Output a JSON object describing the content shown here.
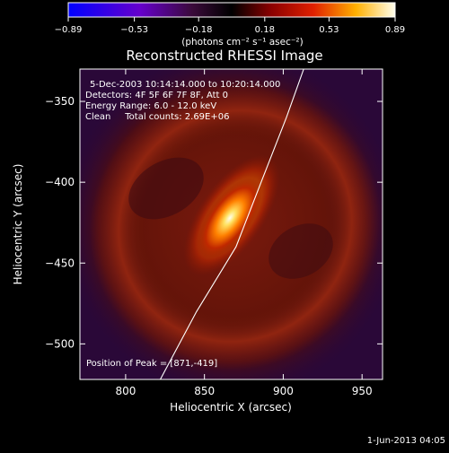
{
  "chart_data": {
    "type": "heatmap",
    "title": "Reconstructed RHESSI Image",
    "xlabel": "Heliocentric X (arcsec)",
    "ylabel": "Heliocentric Y (arcsec)",
    "xlim": [
      771,
      963
    ],
    "ylim": [
      -522,
      -330
    ],
    "x_ticks": [
      800,
      850,
      900,
      950
    ],
    "x_tick_labels": [
      "800",
      "850",
      "900",
      "950"
    ],
    "y_ticks": [
      -350,
      -400,
      -450,
      -500
    ],
    "y_tick_labels": [
      "−350",
      "−400",
      "−450",
      "−500"
    ],
    "colorbar": {
      "range": [
        -0.89,
        0.89
      ],
      "ticks": [
        -0.89,
        -0.53,
        -0.18,
        0.18,
        0.53,
        0.89
      ],
      "tick_labels": [
        "−0.89",
        "−0.53",
        "−0.18",
        "0.18",
        "0.53",
        "0.89"
      ],
      "units": "(photons cm⁻² s⁻¹ asec⁻²)"
    },
    "annotations": [
      "5-Dec-2003 10:14:14.000 to 10:20:14.000",
      "Detectors: 4F 5F 6F 7F 8F, Att 0",
      "Energy Range: 6.0 - 12.0 keV",
      "Clean     Total counts: 2.69E+06"
    ],
    "peak_label": "Position of Peak = [871,-419]",
    "peak": {
      "x": 871,
      "y": -419
    },
    "limb_line": [
      [
        822,
        -522
      ],
      [
        845,
        -480
      ],
      [
        870,
        -440
      ],
      [
        886,
        -400
      ],
      [
        902,
        -360
      ],
      [
        913,
        -330
      ]
    ]
  },
  "footer": {
    "date": "1-Jun-2013 04:05"
  }
}
